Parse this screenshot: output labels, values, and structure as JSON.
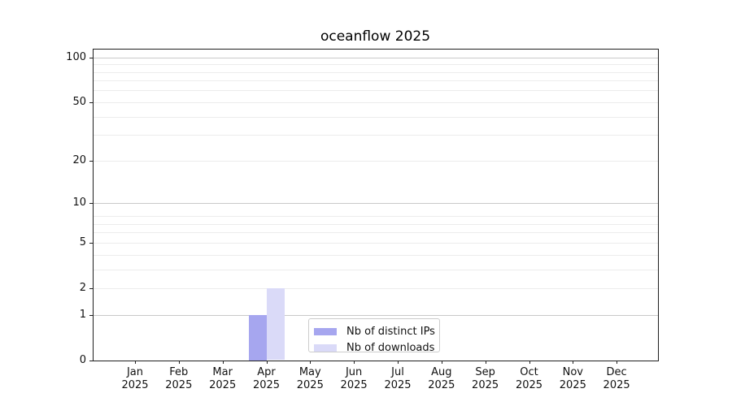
{
  "title": "oceanflow 2025",
  "colors": {
    "ips_bar": "#a6a6ef",
    "downloads_bar": "#dadaf8",
    "grid_minor": "#ececec",
    "grid_major": "#c9c9c9",
    "axis": "#1f1f1f",
    "legend_border": "#cccccc"
  },
  "chart_data": {
    "type": "bar",
    "title": "oceanflow 2025",
    "categories": [
      "Jan 2025",
      "Feb 2025",
      "Mar 2025",
      "Apr 2025",
      "May 2025",
      "Jun 2025",
      "Jul 2025",
      "Aug 2025",
      "Sep 2025",
      "Oct 2025",
      "Nov 2025",
      "Dec 2025"
    ],
    "series": [
      {
        "name": "Nb of distinct IPs",
        "color": "#a6a6ef",
        "values": [
          0,
          0,
          0,
          1,
          0,
          0,
          0,
          0,
          0,
          0,
          0,
          0
        ]
      },
      {
        "name": "Nb of downloads",
        "color": "#dadaf8",
        "values": [
          0,
          0,
          0,
          2,
          0,
          0,
          0,
          0,
          0,
          0,
          0,
          0
        ]
      }
    ],
    "xlabel": "",
    "ylabel": "",
    "yscale": "log1p",
    "yticks": [
      0,
      1,
      2,
      5,
      10,
      20,
      50,
      100
    ],
    "ylim": [
      0,
      112
    ],
    "grid": {
      "major": [
        1,
        10,
        100
      ],
      "minor": [
        2,
        3,
        4,
        5,
        6,
        7,
        8,
        20,
        30,
        40,
        50,
        60,
        70,
        80,
        90
      ]
    },
    "legend_position": "lower center",
    "grid_on": true
  }
}
